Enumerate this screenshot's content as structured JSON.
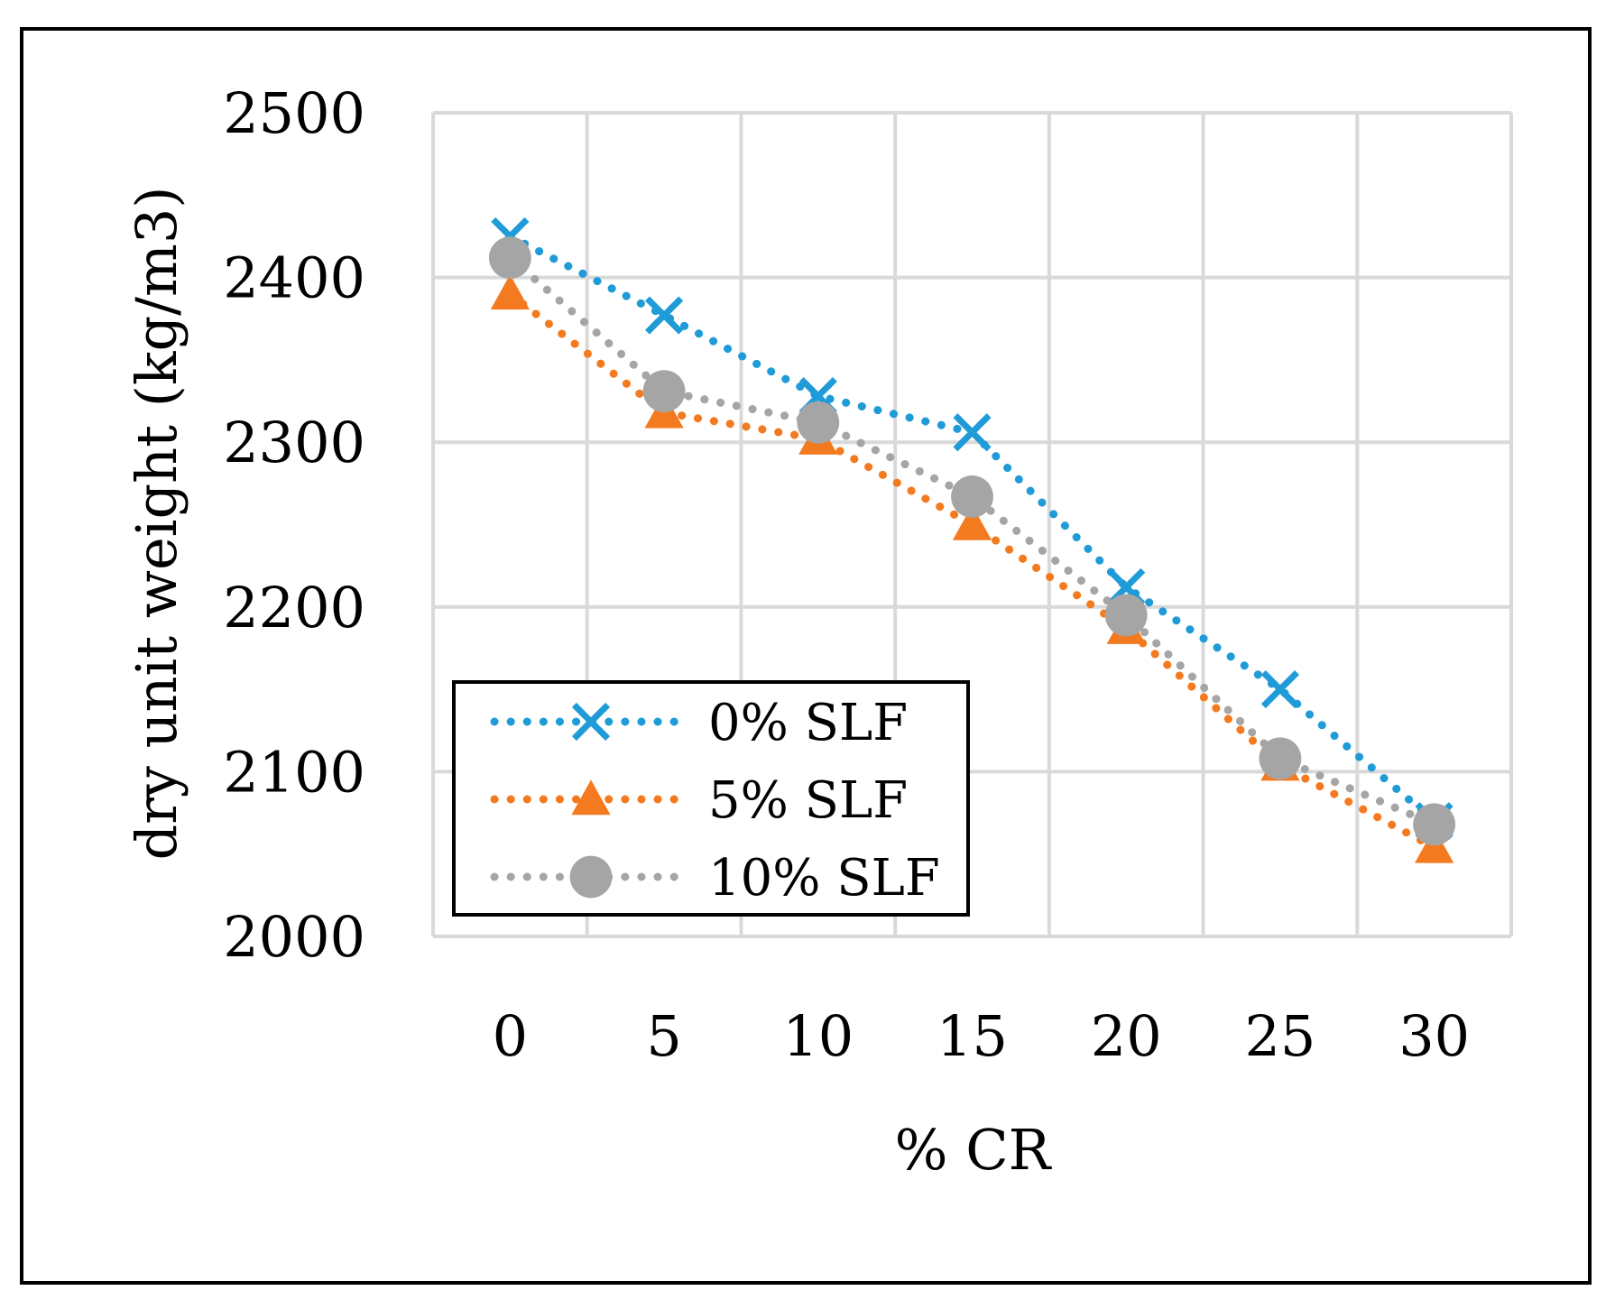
{
  "chart_data": {
    "type": "line",
    "title": "",
    "xlabel": "% CR",
    "ylabel": "dry unit weight (kg/m3)",
    "categories": [
      "0",
      "5",
      "10",
      "15",
      "20",
      "25",
      "30"
    ],
    "x": [
      0,
      5,
      10,
      15,
      20,
      25,
      30
    ],
    "ylim": [
      2000,
      2500
    ],
    "yticks": [
      "2000",
      "2100",
      "2200",
      "2300",
      "2400",
      "2500"
    ],
    "grid": true,
    "legend_position": "bottom-left",
    "series": [
      {
        "name": "0% SLF",
        "marker": "x",
        "color": "#1F9BD7",
        "values": [
          2425,
          2377,
          2328,
          2306,
          2212,
          2150,
          2070
        ]
      },
      {
        "name": "5% SLF",
        "marker": "triangle",
        "color": "#F47A1F",
        "values": [
          2390,
          2318,
          2302,
          2250,
          2187,
          2104,
          2054
        ]
      },
      {
        "name": "10% SLF",
        "marker": "circle",
        "color": "#A5A5A5",
        "values": [
          2412,
          2331,
          2312,
          2267,
          2195,
          2108,
          2068
        ]
      }
    ]
  }
}
